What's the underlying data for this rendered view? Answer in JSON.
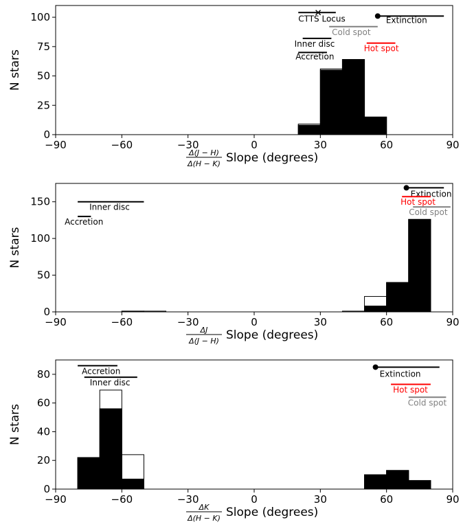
{
  "chart_data": [
    {
      "type": "bar",
      "panel": "top",
      "xlim": [
        -90,
        90
      ],
      "ylim": [
        0,
        110
      ],
      "xticks": [
        "−90",
        "−60",
        "−30",
        "0",
        "30",
        "60",
        "90"
      ],
      "yticks": [
        "0",
        "25",
        "50",
        "75",
        "100"
      ],
      "ylabel": "N stars",
      "xlabel_frac_num": "Δ(J − H)",
      "xlabel_frac_den": "Δ(H − K)",
      "xlabel_rest": "Slope (degrees)",
      "bin_edges": [
        20,
        30,
        40,
        50,
        60
      ],
      "series": [
        {
          "style": "outline",
          "values": [
            9,
            56,
            64,
            15
          ]
        },
        {
          "style": "filled",
          "values": [
            8,
            55,
            64,
            15
          ]
        }
      ],
      "annotations": [
        {
          "text": "CTTS Locus",
          "color": "#000000",
          "x1": 20,
          "x2": 37,
          "y": 104,
          "marker": "x",
          "marker_x": 29
        },
        {
          "text": "Extinction",
          "color": "#000000",
          "x1": 56,
          "x2": 86,
          "y": 101,
          "marker": "dot",
          "marker_x": 56
        },
        {
          "text": "Cold spot",
          "color": "#808080",
          "x1": 34,
          "x2": 56,
          "y": 92
        },
        {
          "text": "Inner disc",
          "color": "#000000",
          "x1": 22,
          "x2": 35,
          "y": 82
        },
        {
          "text": "Hot spot",
          "color": "#ff0000",
          "x1": 51,
          "x2": 64,
          "y": 78
        },
        {
          "text": "Accretion",
          "color": "#000000",
          "x1": 20,
          "x2": 33,
          "y": 70
        }
      ]
    },
    {
      "type": "bar",
      "panel": "middle",
      "xlim": [
        -90,
        90
      ],
      "ylim": [
        0,
        175
      ],
      "xticks": [
        "−90",
        "−60",
        "−30",
        "0",
        "30",
        "60",
        "90"
      ],
      "yticks": [
        "0",
        "50",
        "100",
        "150"
      ],
      "ylabel": "N stars",
      "xlabel_frac_num": "ΔJ",
      "xlabel_frac_den": "Δ(J − H)",
      "xlabel_rest": "Slope (degrees)",
      "bin_edges": [
        -60,
        -50,
        -40,
        -30,
        -20,
        -10,
        0,
        10,
        20,
        30,
        40,
        50,
        60,
        70,
        80,
        90
      ],
      "series": [
        {
          "style": "outline",
          "values": [
            1,
            1,
            0,
            0,
            0,
            0,
            0,
            0,
            0,
            0,
            1,
            21,
            40,
            126,
            0
          ]
        },
        {
          "style": "filled",
          "values": [
            1,
            0,
            0,
            0,
            0,
            0,
            0,
            0,
            0,
            0,
            0,
            8,
            40,
            126,
            0
          ]
        }
      ],
      "annotations": [
        {
          "text": "Extinction",
          "color": "#000000",
          "x1": 69,
          "x2": 86,
          "y": 169,
          "marker": "dot",
          "marker_x": 69
        },
        {
          "text": "Inner disc",
          "color": "#000000",
          "x1": -80,
          "x2": -50,
          "y": 150
        },
        {
          "text": "Hot spot",
          "color": "#ff0000",
          "x1": 67,
          "x2": 80,
          "y": 157
        },
        {
          "text": "Cold spot",
          "color": "#808080",
          "x1": 72,
          "x2": 89,
          "y": 143
        },
        {
          "text": "Accretion",
          "color": "#000000",
          "x1": -80,
          "x2": -74,
          "y": 130
        }
      ]
    },
    {
      "type": "bar",
      "panel": "bottom",
      "xlim": [
        -90,
        90
      ],
      "ylim": [
        0,
        90
      ],
      "xticks": [
        "−90",
        "−60",
        "−30",
        "0",
        "30",
        "60",
        "90"
      ],
      "yticks": [
        "0",
        "20",
        "40",
        "60",
        "80"
      ],
      "ylabel": "N stars",
      "xlabel_frac_num": "ΔK",
      "xlabel_frac_den": "Δ(H − K)",
      "xlabel_rest": "Slope (degrees)",
      "bin_edges": [
        -80,
        -70,
        -60,
        -50,
        -40,
        -30,
        -20,
        -10,
        0,
        10,
        20,
        30,
        40,
        50,
        60,
        70,
        80
      ],
      "series": [
        {
          "style": "outline",
          "values": [
            22,
            69,
            24,
            0,
            0,
            0,
            0,
            0,
            0,
            0,
            0,
            0,
            0,
            10,
            13,
            6
          ]
        },
        {
          "style": "filled",
          "values": [
            22,
            56,
            7,
            0,
            0,
            0,
            0,
            0,
            0,
            0,
            0,
            0,
            0,
            10,
            13,
            6
          ]
        }
      ],
      "annotations": [
        {
          "text": "Extinction",
          "color": "#000000",
          "x1": 55,
          "x2": 84,
          "y": 85,
          "marker": "dot",
          "marker_x": 55
        },
        {
          "text": "Accretion",
          "color": "#000000",
          "x1": -80,
          "x2": -62,
          "y": 86
        },
        {
          "text": "Inner disc",
          "color": "#000000",
          "x1": -77,
          "x2": -53,
          "y": 78
        },
        {
          "text": "Hot spot",
          "color": "#ff0000",
          "x1": 62,
          "x2": 80,
          "y": 73
        },
        {
          "text": "Cold spot",
          "color": "#808080",
          "x1": 70,
          "x2": 87,
          "y": 64
        }
      ]
    }
  ]
}
